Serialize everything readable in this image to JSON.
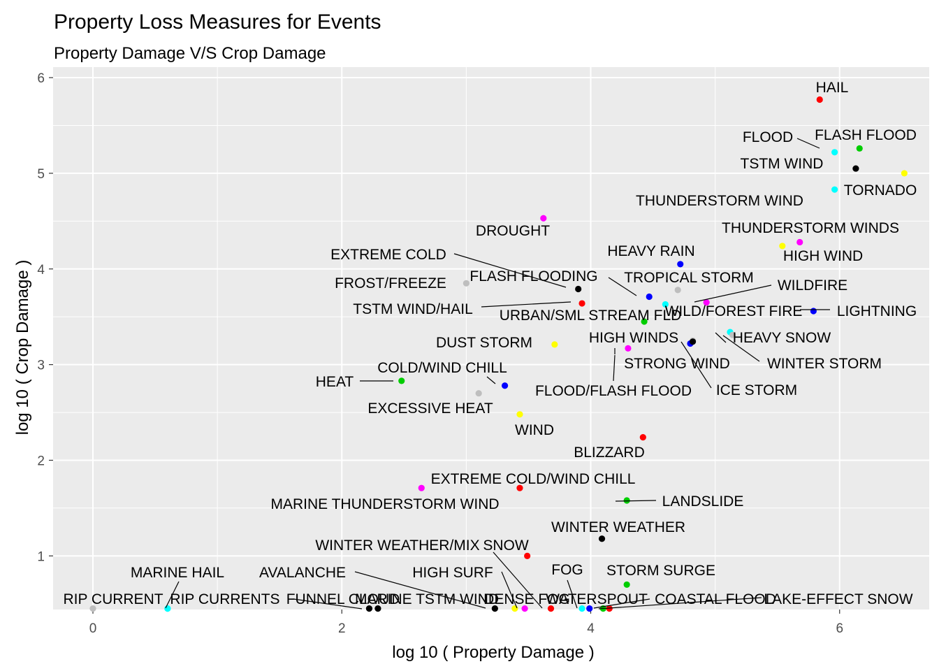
{
  "chart_data": {
    "type": "scatter",
    "title": "Property Loss Measures for Events",
    "subtitle": "Property Damage V/S Crop Damage",
    "xlabel": "log 10 ( Property Damage )",
    "ylabel": "log 10 ( Crop Damage )",
    "xlim": [
      -0.32,
      6.72
    ],
    "ylim": [
      0.44,
      6.11
    ],
    "x_ticks": [
      "0",
      "2",
      "4",
      "6"
    ],
    "y_ticks": [
      "1",
      "2",
      "3",
      "4",
      "5",
      "6"
    ],
    "grid": true,
    "legend": "none",
    "points": [
      {
        "label": "HAIL",
        "x": 5.84,
        "y": 5.77,
        "color": "#ff0000"
      },
      {
        "label": "FLOOD",
        "x": 5.96,
        "y": 5.22,
        "color": "#00ffff"
      },
      {
        "label": "FLASH FLOOD",
        "x": 6.16,
        "y": 5.26,
        "color": "#00cd00"
      },
      {
        "label": "TSTM WIND",
        "x": 6.13,
        "y": 5.05,
        "color": "#000000"
      },
      {
        "label": "TORNADO",
        "x": 6.52,
        "y": 5.0,
        "color": "#ffff00"
      },
      {
        "label": "THUNDERSTORM WIND",
        "x": 5.96,
        "y": 4.83,
        "color": "#00ffff"
      },
      {
        "label": "DROUGHT",
        "x": 3.62,
        "y": 4.53,
        "color": "#ff00ff"
      },
      {
        "label": "THUNDERSTORM WINDS",
        "x": 5.54,
        "y": 4.24,
        "color": "#ffff00"
      },
      {
        "label": "HIGH WIND",
        "x": 5.68,
        "y": 4.28,
        "color": "#ff00ff"
      },
      {
        "label": "HEAVY RAIN",
        "x": 4.72,
        "y": 4.05,
        "color": "#0000ff"
      },
      {
        "label": "EXTREME COLD",
        "x": 3.9,
        "y": 3.79,
        "color": "#000000"
      },
      {
        "label": "FROST/FREEZE",
        "x": 3.0,
        "y": 3.85,
        "color": "#bebebe"
      },
      {
        "label": "FLASH FLOODING",
        "x": 4.47,
        "y": 3.71,
        "color": "#0000ff"
      },
      {
        "label": "TROPICAL STORM",
        "x": 4.7,
        "y": 3.78,
        "color": "#bebebe"
      },
      {
        "label": "WILDFIRE",
        "x": 4.93,
        "y": 3.65,
        "color": "#ff00ff"
      },
      {
        "label": "TSTM WIND/HAIL",
        "x": 3.93,
        "y": 3.64,
        "color": "#ff0000"
      },
      {
        "label": "URBAN/SML STREAM FLD",
        "x": 4.6,
        "y": 3.63,
        "color": "#00ffff"
      },
      {
        "label": "WILD/FOREST FIRE",
        "x": 4.43,
        "y": 3.45,
        "color": "#00cd00"
      },
      {
        "label": "LIGHTNING",
        "x": 5.79,
        "y": 3.56,
        "color": "#0000ff"
      },
      {
        "label": "HEAVY SNOW",
        "x": 5.12,
        "y": 3.34,
        "color": "#00ffff"
      },
      {
        "label": "HIGH WINDS",
        "x": 4.82,
        "y": 3.25,
        "color": "#bebebe"
      },
      {
        "label": "DUST STORM",
        "x": 3.71,
        "y": 3.21,
        "color": "#ffff00"
      },
      {
        "label": "STRONG WIND",
        "x": 4.3,
        "y": 3.17,
        "color": "#ff00ff"
      },
      {
        "label": "WINTER STORM",
        "x": 5.14,
        "y": 3.31,
        "color": "#bebebe"
      },
      {
        "label": "ICE STORM",
        "x": 4.8,
        "y": 3.22,
        "color": "#0000ff"
      },
      {
        "label": "FLOOD/FLASH FLOOD",
        "x": 4.82,
        "y": 3.24,
        "color": "#000000"
      },
      {
        "label": "COLD/WIND CHILL",
        "x": 3.31,
        "y": 2.78,
        "color": "#0000ff"
      },
      {
        "label": "HEAT",
        "x": 2.48,
        "y": 2.83,
        "color": "#00cd00"
      },
      {
        "label": "EXCESSIVE HEAT",
        "x": 3.1,
        "y": 2.7,
        "color": "#bebebe"
      },
      {
        "label": "WIND",
        "x": 3.43,
        "y": 2.48,
        "color": "#ffff00"
      },
      {
        "label": "BLIZZARD",
        "x": 4.42,
        "y": 2.24,
        "color": "#ff0000"
      },
      {
        "label": "EXTREME COLD/WIND CHILL",
        "x": 2.64,
        "y": 1.71,
        "color": "#ff00ff"
      },
      {
        "label": "MARINE THUNDERSTORM WIND",
        "x": 3.43,
        "y": 1.71,
        "color": "#ff0000"
      },
      {
        "label": "LANDSLIDE",
        "x": 4.29,
        "y": 1.58,
        "color": "#00cd00"
      },
      {
        "label": "WINTER WEATHER",
        "x": 4.09,
        "y": 1.18,
        "color": "#000000"
      },
      {
        "label": "WINTER WEATHER/MIX",
        "x": 3.49,
        "y": 1.0,
        "color": "#ff0000"
      },
      {
        "label": "SNOW",
        "x": 3.68,
        "y": 0.45,
        "color": "#ff0000"
      },
      {
        "label": "STORM SURGE",
        "x": 4.29,
        "y": 0.7,
        "color": "#00cd00"
      },
      {
        "label": "MARINE HAIL",
        "x": 0.6,
        "y": 0.45,
        "color": "#00ffff"
      },
      {
        "label": "AVALANCHE",
        "x": 2.29,
        "y": 0.45,
        "color": "#000000"
      },
      {
        "label": "HIGH SURF",
        "x": 3.47,
        "y": 0.45,
        "color": "#ff00ff"
      },
      {
        "label": "FOG",
        "x": 3.99,
        "y": 0.45,
        "color": "#0000ff"
      },
      {
        "label": "RIP CURRENT",
        "x": 0.0,
        "y": 0.45,
        "color": "#bebebe"
      },
      {
        "label": "RIP CURRENTS",
        "x": 0.6,
        "y": 0.45,
        "color": "#00ffff"
      },
      {
        "label": "FUNNEL CLOUD",
        "x": 2.22,
        "y": 0.45,
        "color": "#000000"
      },
      {
        "label": "MARINE TSTM WIND",
        "x": 3.23,
        "y": 0.45,
        "color": "#000000"
      },
      {
        "label": "DENSE FOG",
        "x": 3.39,
        "y": 0.45,
        "color": "#ffff00"
      },
      {
        "label": "WATERSPOUT",
        "x": 3.93,
        "y": 0.45,
        "color": "#00ffff"
      },
      {
        "label": "COASTAL FLOOD",
        "x": 4.1,
        "y": 0.45,
        "color": "#00cd00"
      },
      {
        "label": "LAKE-EFFECT SNOW",
        "x": 4.15,
        "y": 0.45,
        "color": "#ff0000"
      }
    ]
  }
}
